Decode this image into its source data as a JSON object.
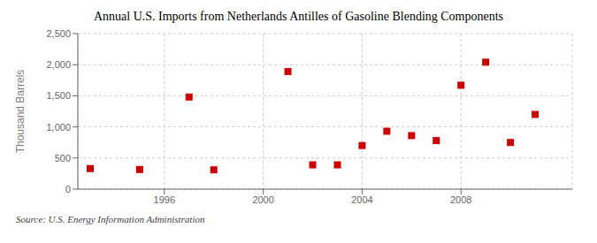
{
  "chart_data": {
    "type": "scatter",
    "title": "Annual U.S. Imports from Netherlands Antilles of Gasoline Blending Components",
    "ylabel": "Thousand Barrels",
    "annotation": "Source: U.S. Energy Information Administration",
    "x": [
      1993,
      1995,
      1997,
      1998,
      2001,
      2002,
      2003,
      2004,
      2005,
      2006,
      2007,
      2008,
      2009,
      2010,
      2011
    ],
    "values": [
      330,
      315,
      1480,
      310,
      1890,
      390,
      390,
      700,
      930,
      860,
      780,
      1670,
      2040,
      750,
      1200
    ],
    "color": "#cc0000",
    "marker": "square",
    "xlim": [
      1992.5,
      2012.5
    ],
    "xticks": [
      1996,
      2000,
      2004,
      2008
    ],
    "ylim": [
      0,
      2500
    ],
    "yticks": [
      0,
      500,
      {
        "value": 1000,
        "label": "1,000"
      },
      {
        "value": 1500,
        "label": "1,500"
      },
      {
        "value": 2000,
        "label": "2,000"
      },
      {
        "value": 2500,
        "label": "2,500"
      }
    ],
    "grid": true
  }
}
